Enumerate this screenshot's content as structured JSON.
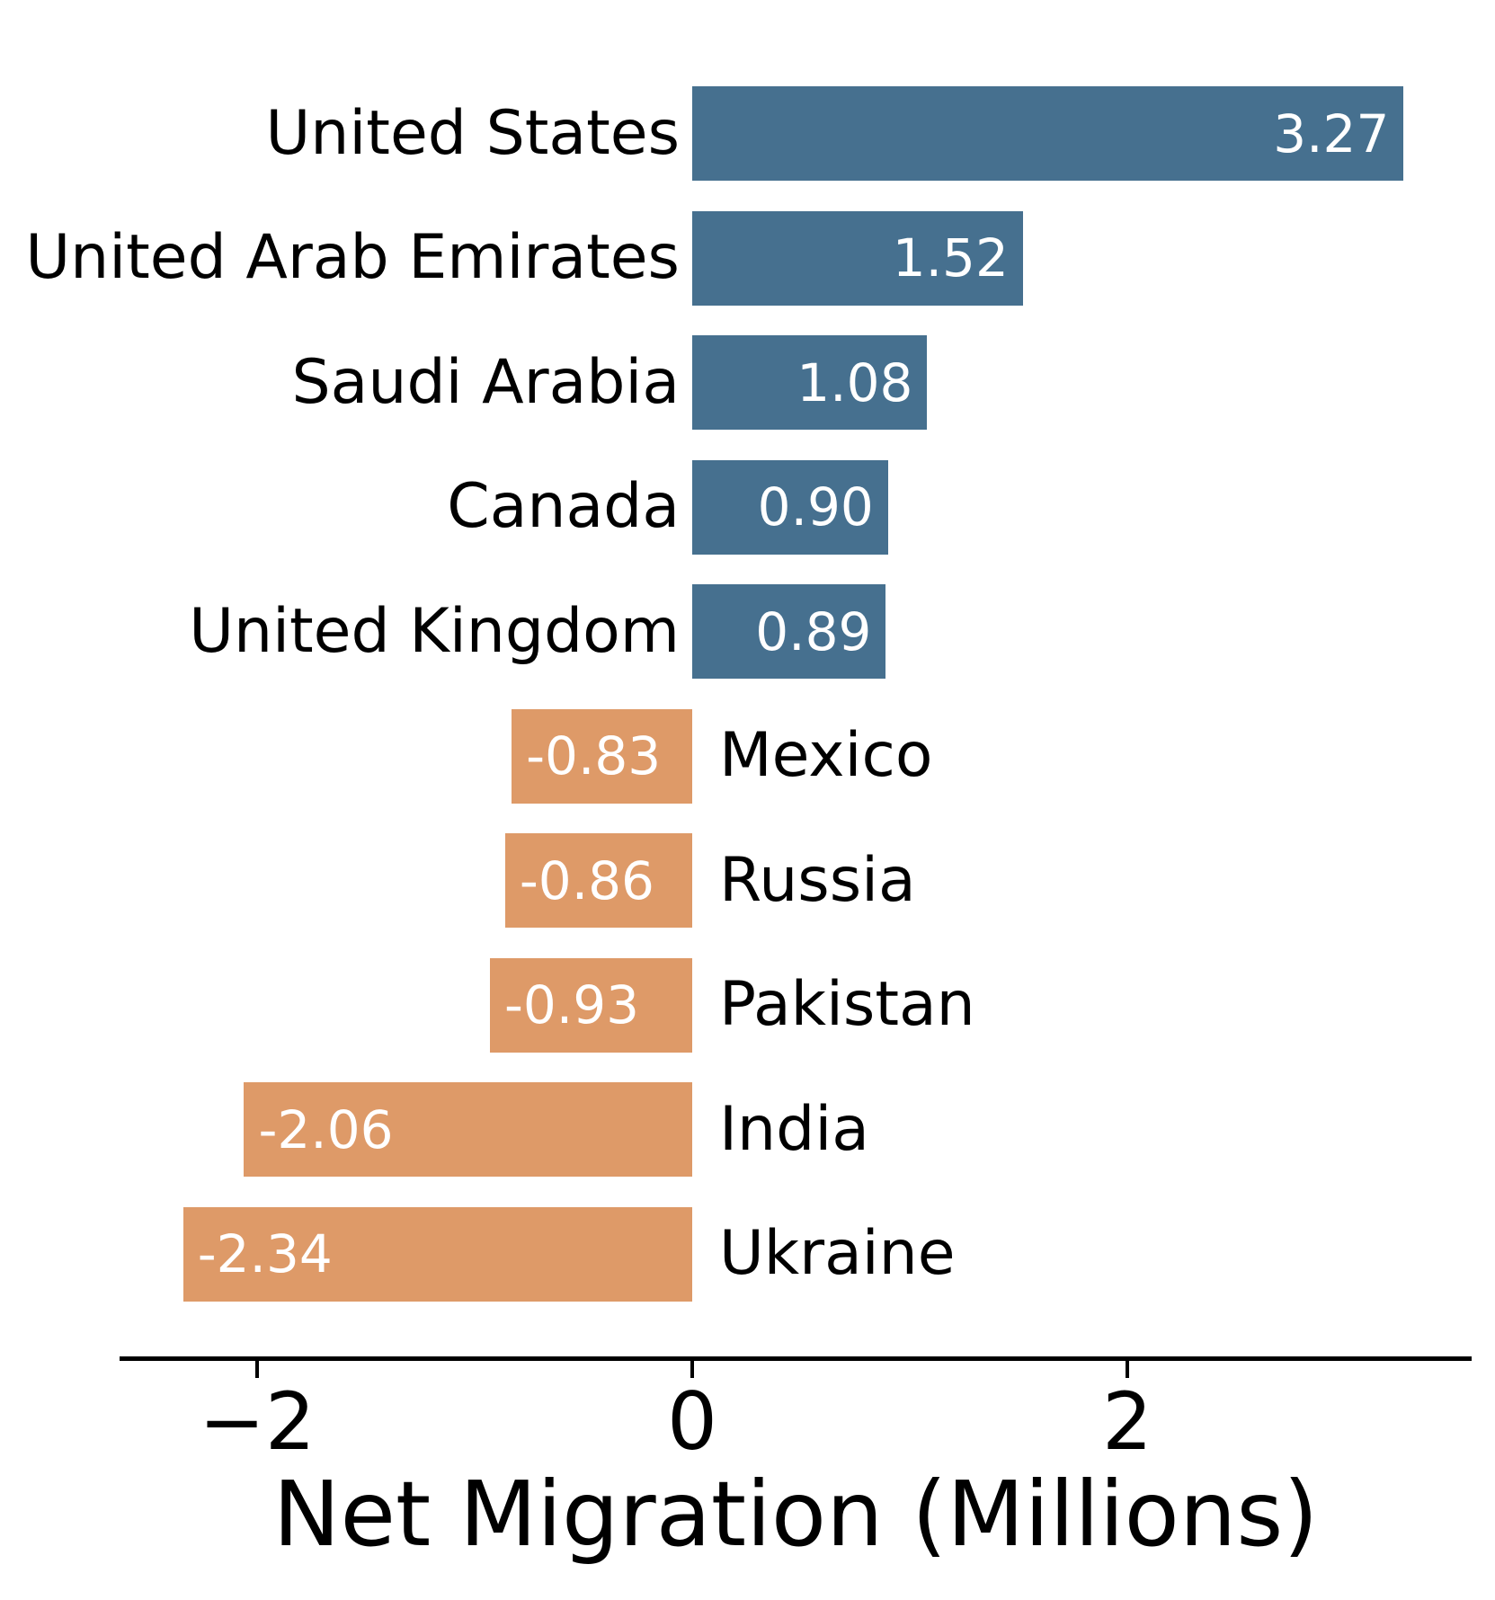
{
  "chart_data": {
    "type": "bar",
    "orientation": "horizontal",
    "title": "",
    "xlabel": "Net Migration (Millions)",
    "ylabel": "",
    "categories": [
      "United States",
      "United Arab Emirates",
      "Saudi Arabia",
      "Canada",
      "United Kingdom",
      "Mexico",
      "Russia",
      "Pakistan",
      "India",
      "Ukraine"
    ],
    "values": [
      3.27,
      1.52,
      1.08,
      0.9,
      0.89,
      -0.83,
      -0.86,
      -0.93,
      -2.06,
      -2.34
    ],
    "bar_labels": [
      "3.27",
      "1.52",
      "1.08",
      "0.90",
      "0.89",
      "-0.83",
      "-0.86",
      "-0.93",
      "-2.06",
      "-2.34"
    ],
    "x_ticks": [
      {
        "value": -2,
        "label": "−2"
      },
      {
        "value": 0,
        "label": "0"
      },
      {
        "value": 2,
        "label": "2"
      }
    ],
    "xlim": [
      -2.62,
      3.55
    ],
    "grid": false,
    "legend": null,
    "colors": {
      "positive_bar": "#46708f",
      "negative_bar": "#de9a68",
      "bar_label_text": "#ffffff",
      "axis": "#000000",
      "text": "#000000",
      "background": "#ffffff"
    }
  }
}
